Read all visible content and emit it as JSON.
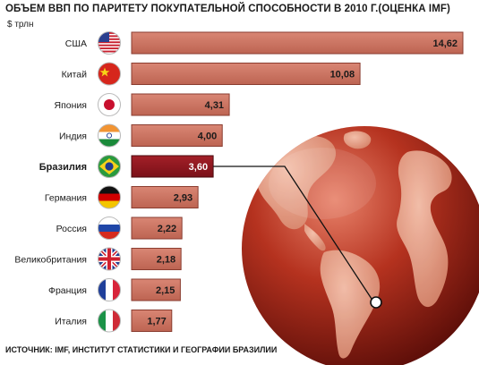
{
  "header": {
    "title": "ОБЪЕМ ВВП ПО ПАРИТЕТУ ПОКУПАТЕЛЬНОЙ СПОСОБНОСТИ В 2010 Г.(ОЦЕНКА IMF)",
    "unit": "$ трлн"
  },
  "footer": {
    "source": "ИСТОЧНИК: IMF, ИНСТИТУТ СТАТИСТИКИ И ГЕОГРАФИИ БРАЗИЛИИ"
  },
  "colors": {
    "bar": "#c96f5d",
    "bar_highlight": "#8c1620",
    "bar_border": "#8a3d30",
    "globe": "#b5321f"
  },
  "chart_data": {
    "type": "bar",
    "orientation": "horizontal",
    "title": "ОБЪЕМ ВВП ПО ПАРИТЕТУ ПОКУПАТЕЛЬНОЙ СПОСОБНОСТИ В 2010 Г.(ОЦЕНКА IMF)",
    "ylabel": "$ трлн",
    "categories": [
      "США",
      "Китай",
      "Япония",
      "Индия",
      "Бразилия",
      "Германия",
      "Россия",
      "Великобритания",
      "Франция",
      "Италия"
    ],
    "values": [
      14.62,
      10.08,
      4.31,
      4.0,
      3.6,
      2.93,
      2.22,
      2.18,
      2.15,
      1.77
    ],
    "value_labels": [
      "14,62",
      "10,08",
      "4,31",
      "4,00",
      "3,60",
      "2,93",
      "2,22",
      "2,18",
      "2,15",
      "1,77"
    ],
    "flags": [
      "us-flag-icon",
      "china-flag-icon",
      "japan-flag-icon",
      "india-flag-icon",
      "brazil-flag-icon",
      "germany-flag-icon",
      "russia-flag-icon",
      "uk-flag-icon",
      "france-flag-icon",
      "italy-flag-icon"
    ],
    "highlight": "Бразилия",
    "xlim": [
      0,
      14.62
    ]
  }
}
